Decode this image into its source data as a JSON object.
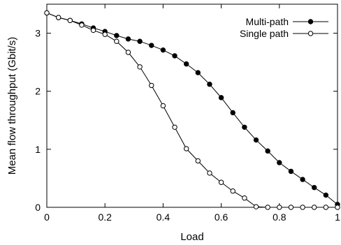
{
  "chart_data": {
    "type": "line",
    "xlabel": "Load",
    "ylabel": "Mean flow throughput (Gbit/s)",
    "xlim": [
      0,
      1
    ],
    "ylim": [
      0,
      3.5
    ],
    "xticks": [
      0,
      0.2,
      0.4,
      0.6,
      0.8,
      1
    ],
    "xtick_labels": [
      "0",
      "0.2",
      "0.4",
      "0.6",
      "0.8",
      "1"
    ],
    "yticks": [
      0,
      1,
      2,
      3
    ],
    "ytick_labels": [
      "0",
      "1",
      "2",
      "3"
    ],
    "grid": false,
    "legend_position": "top-right",
    "x": [
      0,
      0.04,
      0.08,
      0.12,
      0.16,
      0.2,
      0.24,
      0.28,
      0.32,
      0.36,
      0.4,
      0.44,
      0.48,
      0.52,
      0.56,
      0.6,
      0.64,
      0.68,
      0.72,
      0.76,
      0.8,
      0.84,
      0.88,
      0.92,
      0.96,
      1.0
    ],
    "series": [
      {
        "name": "Multi-path",
        "marker": "filled-circle",
        "color": "#000000",
        "values": [
          3.35,
          3.27,
          3.22,
          3.16,
          3.09,
          3.03,
          2.96,
          2.9,
          2.86,
          2.79,
          2.71,
          2.61,
          2.47,
          2.32,
          2.12,
          1.89,
          1.63,
          1.38,
          1.16,
          0.97,
          0.77,
          0.62,
          0.48,
          0.34,
          0.21,
          0.05
        ]
      },
      {
        "name": "Single path",
        "marker": "open-circle",
        "color": "#000000",
        "values": [
          3.35,
          3.27,
          3.22,
          3.14,
          3.05,
          2.98,
          2.86,
          2.67,
          2.42,
          2.1,
          1.75,
          1.38,
          1.01,
          0.8,
          0.59,
          0.43,
          0.28,
          0.16,
          0.01,
          0.0,
          0.0,
          0.0,
          0.0,
          0.0,
          0.0,
          0.0
        ]
      }
    ]
  }
}
